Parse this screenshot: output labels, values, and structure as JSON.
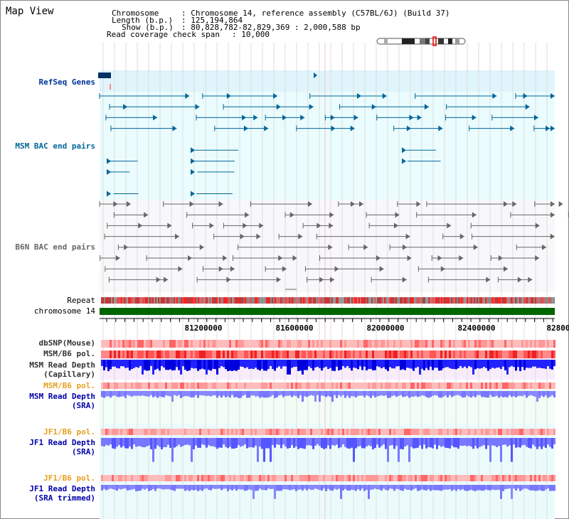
{
  "title": "Map View",
  "info": {
    "chromosome_key": "Chromosome",
    "chromosome_val": ": Chromosome 14, reference assembly (C57BL/6J) (Build 37)",
    "length_key": "Length (b.p.)",
    "length_val": ": 125,194,864",
    "show_key": "Show (b.p.)",
    "show_val": ": 80,828,782-82,829,369 : 2,000,588 bp",
    "coverage_key": "Read coverage check span",
    "coverage_val": ": 10,000"
  },
  "tracks": {
    "refseq": {
      "label": "RefSeq Genes",
      "color": "#003399"
    },
    "msm_bac": {
      "label": "MSM BAC end pairs",
      "color": "#006699"
    },
    "b6n_bac": {
      "label": "B6N BAC end pairs",
      "color": "#666666"
    },
    "repeat": {
      "label": "Repeat"
    },
    "chrom": {
      "label": "chromosome 14",
      "color": "#006600"
    },
    "dbsnp": {
      "label": "dbSNP(Mouse)",
      "color": "#333333"
    },
    "msm_b6_pol_1": {
      "label": "MSM/B6 pol.",
      "color": "#333333"
    },
    "msm_depth_cap": {
      "label1": "MSM Read Depth",
      "label2": "(Capillary)",
      "color": "#333333"
    },
    "msm_b6_pol_2": {
      "label": "MSM/B6 pol.",
      "color": "#e6a020"
    },
    "msm_depth_sra": {
      "label1": "MSM Read Depth",
      "label2": "(SRA)",
      "color": "#0000aa"
    },
    "jf1_b6_pol_1": {
      "label": "JF1/B6 pol.",
      "color": "#e6a020"
    },
    "jf1_depth_sra": {
      "label1": "JF1 Read Depth",
      "label2": "(SRA)",
      "color": "#0000aa"
    },
    "jf1_b6_pol_2": {
      "label": "JF1/B6 pol.",
      "color": "#e6a020"
    },
    "jf1_depth_trim": {
      "label1": "JF1 Read Depth",
      "label2": "(SRA trimmed)",
      "color": "#0000aa"
    }
  },
  "axis": {
    "ticks": [
      "81200000",
      "81600000",
      "82000000",
      "82400000",
      "82800"
    ]
  }
}
